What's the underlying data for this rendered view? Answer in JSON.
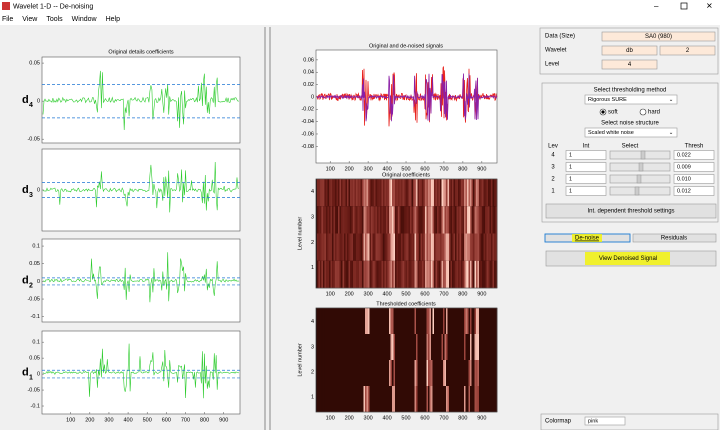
{
  "window": {
    "title": "Wavelet 1-D  --  De-noising"
  },
  "menu": [
    "File",
    "View",
    "Tools",
    "Window",
    "Help"
  ],
  "details": {
    "title": "Original details coefficients",
    "xlim": [
      -50,
      985
    ],
    "xticks": [
      100,
      200,
      300,
      400,
      500,
      600,
      700,
      800,
      900
    ],
    "panels": [
      {
        "name": "d",
        "level": "4",
        "ylim": [
          -0.055,
          0.058
        ],
        "yticks": [
          0.05,
          0,
          -0.05
        ]
      },
      {
        "name": "d",
        "level": "3",
        "ylim": [
          -0.05,
          0.05
        ],
        "yticks": [
          0
        ]
      },
      {
        "name": "d",
        "level": "2",
        "ylim": [
          -0.115,
          0.12
        ],
        "yticks": [
          0.1,
          0.05,
          0,
          -0.05,
          -0.1
        ]
      },
      {
        "name": "d",
        "level": "1",
        "ylim": [
          -0.125,
          0.135
        ],
        "yticks": [
          0.1,
          0.05,
          0,
          -0.05,
          -0.1
        ]
      }
    ]
  },
  "signals": {
    "title": "Original and de-noised signals",
    "xlim": [
      25,
      980
    ],
    "xticks": [
      100,
      200,
      300,
      400,
      500,
      600,
      700,
      800,
      900
    ],
    "ylim": [
      -0.107,
      0.076
    ],
    "yticks": [
      0.06,
      0.04,
      0.02,
      0,
      -0.02,
      -0.04,
      -0.06,
      -0.08
    ]
  },
  "original_coefs": {
    "title": "Original coefficients",
    "ylabel": "Level number",
    "xlim": [
      25,
      980
    ],
    "xticks": [
      100,
      200,
      300,
      400,
      500,
      600,
      700,
      800,
      900
    ],
    "ylim": [
      0.2,
      4.5
    ],
    "yticks": [
      1,
      2,
      3,
      4
    ]
  },
  "thresholded_coefs": {
    "title": "Thresholded coefficients",
    "ylabel": "Level number",
    "xlim": [
      25,
      980
    ],
    "xticks": [
      100,
      200,
      300,
      400,
      500,
      600,
      700,
      800,
      900
    ],
    "ylim": [
      0.4,
      4.55
    ],
    "yticks": [
      1,
      2,
      3,
      4
    ]
  },
  "controls": {
    "data_label": "Data  (Size)",
    "data_value": "SA0  (980)",
    "wavelet_label": "Wavelet",
    "wavelet_family": "db",
    "wavelet_order": "2",
    "level_label": "Level",
    "level_value": "4",
    "method_heading": "Select thresholding method",
    "method": "Rigorous SURE",
    "soft": "soft",
    "hard": "hard",
    "noise_heading": "Select noise structure",
    "noise": "Scaled white noise",
    "table_header": [
      "Lev",
      "Int",
      "Select",
      "Thresh"
    ],
    "rows": [
      {
        "lev": "4",
        "int": "1",
        "thresh": 0.022
      },
      {
        "lev": "3",
        "int": "1",
        "thresh": 0.009
      },
      {
        "lev": "2",
        "int": "1",
        "thresh": {
          "value": 0.01,
          "label": "0.010"
        }
      },
      {
        "lev": "1",
        "int": "1",
        "thresh": 0.012
      }
    ],
    "int_button": "Int. dependent threshold settings",
    "denoise_button": "De-noise",
    "residuals_button": "Residuals",
    "view_button": "View Denoised Signal",
    "colormap_label": "Colormap",
    "colormap": "pink"
  }
}
